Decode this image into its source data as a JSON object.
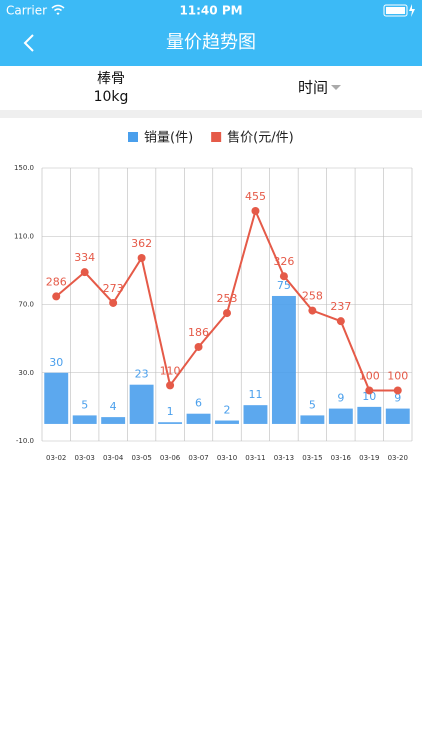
{
  "status_bar": {
    "carrier": "Carrier",
    "time": "11:40 PM"
  },
  "nav": {
    "title": "量价趋势图"
  },
  "filter": {
    "product": "棒骨",
    "spec": "10kg",
    "sort": "时间"
  },
  "chart_data": {
    "type": "bar",
    "categories": [
      "03-02",
      "03-03",
      "03-04",
      "03-05",
      "03-06",
      "03-07",
      "03-10",
      "03-11",
      "03-13",
      "03-15",
      "03-16",
      "03-19",
      "03-20"
    ],
    "series": [
      {
        "name": "销量(件)",
        "color": "#4a9fec",
        "type": "bar",
        "values": [
          30,
          5,
          4,
          23,
          1,
          6,
          2,
          11,
          75,
          5,
          9,
          10,
          9
        ]
      },
      {
        "name": "售价(元/件)",
        "color": "#e55a48",
        "type": "line",
        "axis": "y2",
        "values": [
          286,
          334,
          273,
          362,
          110,
          186,
          253,
          455,
          326,
          258,
          237,
          100,
          100
        ]
      }
    ],
    "ylim": [
      -10,
      150
    ],
    "yticks": [
      {
        "value": -10,
        "label": "-10.0"
      },
      {
        "value": 30,
        "label": "30.0"
      },
      {
        "value": 70,
        "label": "70.0"
      },
      {
        "value": 110,
        "label": "110.0"
      },
      {
        "value": 150,
        "label": "150.0"
      }
    ],
    "y2lim": [
      0,
      540
    ],
    "grid": true,
    "legend": "top"
  }
}
